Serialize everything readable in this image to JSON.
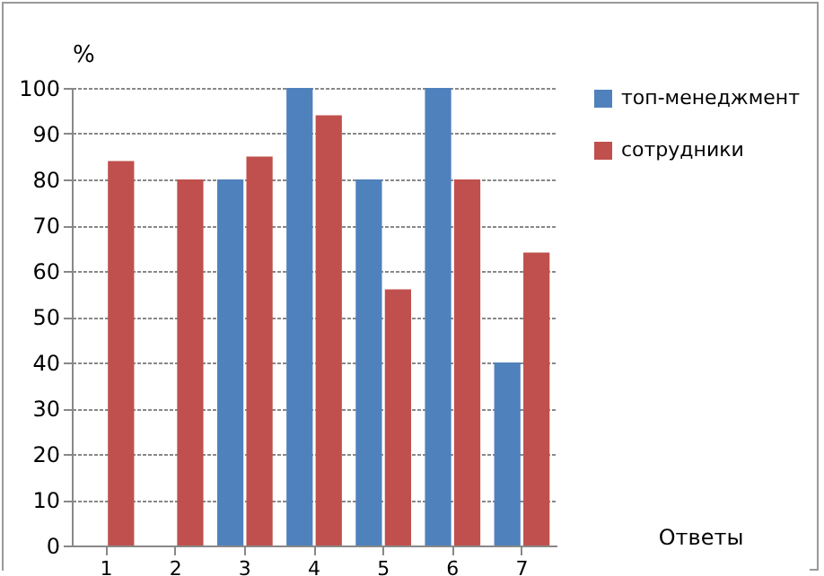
{
  "chart_data": {
    "type": "bar",
    "ylabel": "%",
    "xlabel": "Ответы",
    "categories": [
      "1",
      "2",
      "3",
      "4",
      "5",
      "6",
      "7"
    ],
    "series": [
      {
        "name": "топ-менеджмент",
        "color": "#4f81bd",
        "values": [
          0,
          0,
          80,
          100,
          80,
          100,
          40
        ]
      },
      {
        "name": "сотрудники",
        "color": "#c0504d",
        "values": [
          84,
          80,
          85,
          94,
          56,
          80,
          64
        ]
      }
    ],
    "ylim": [
      0,
      100
    ],
    "yticks": [
      0,
      10,
      20,
      30,
      40,
      50,
      60,
      70,
      80,
      90,
      100
    ],
    "grid": true,
    "legend": "right"
  }
}
